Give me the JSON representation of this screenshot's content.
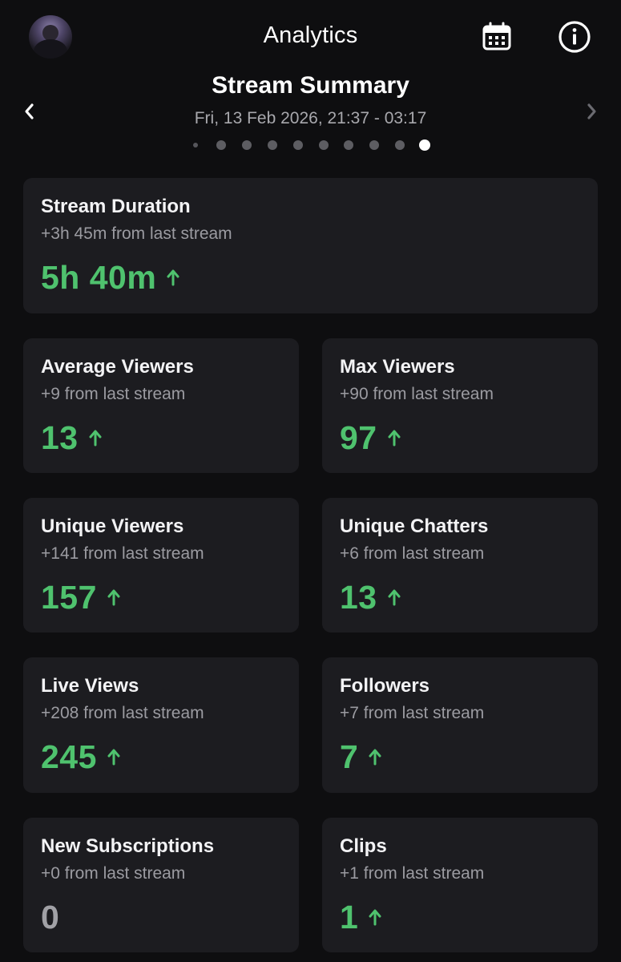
{
  "header": {
    "title": "Analytics",
    "avatar_icon": "user-avatar",
    "calendar_icon": "calendar-icon",
    "info_icon": "info-icon"
  },
  "summary": {
    "title": "Stream Summary",
    "date_range": "Fri, 13 Feb 2026, 21:37 - 03:17",
    "page_count": 10,
    "active_page": 10
  },
  "colors": {
    "background": "#0e0e10",
    "card": "#1c1c20",
    "positive": "#4fc26e",
    "neutral": "#a1a1a6"
  },
  "stats": {
    "duration": {
      "label": "Stream Duration",
      "delta": "+3h 45m from last stream",
      "value": "5h 40m",
      "trend": "up"
    },
    "avg_viewers": {
      "label": "Average Viewers",
      "delta": "+9 from last stream",
      "value": "13",
      "trend": "up"
    },
    "max_viewers": {
      "label": "Max Viewers",
      "delta": "+90 from last stream",
      "value": "97",
      "trend": "up"
    },
    "unique_viewers": {
      "label": "Unique Viewers",
      "delta": "+141 from last stream",
      "value": "157",
      "trend": "up"
    },
    "unique_chatters": {
      "label": "Unique Chatters",
      "delta": "+6 from last stream",
      "value": "13",
      "trend": "up"
    },
    "live_views": {
      "label": "Live Views",
      "delta": "+208 from last stream",
      "value": "245",
      "trend": "up"
    },
    "followers": {
      "label": "Followers",
      "delta": "+7 from last stream",
      "value": "7",
      "trend": "up"
    },
    "new_subs": {
      "label": "New Subscriptions",
      "delta": "+0 from last stream",
      "value": "0",
      "trend": "none"
    },
    "clips": {
      "label": "Clips",
      "delta": "+1 from last stream",
      "value": "1",
      "trend": "up"
    }
  }
}
